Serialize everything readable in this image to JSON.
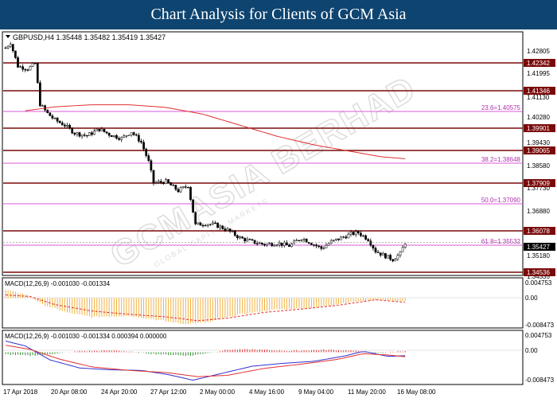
{
  "banner": {
    "title": "Chart Analysis for Clients of GCM Asia"
  },
  "watermark": {
    "brand": "GCMASIA BERHAD",
    "tagline": "GLOBAL CAPITAL MARKETS"
  },
  "colors": {
    "banner": "#0e4470",
    "candle": "#000000",
    "level_line": "#7a0a0a",
    "fib_line": "#d85ad8",
    "ma_line": "#e03030",
    "macd_hist": "#f0b040",
    "macd_signal": "#e03030",
    "osma_pos": "#e03030",
    "osma_neg": "#2a8a2a",
    "line_main": "#3030d0",
    "line_signal": "#e03030",
    "tag_bg": "#7a0a0a",
    "tag_current": "#000000"
  },
  "main_panel": {
    "header": "GBPUSD,H4  1.35448 1.35482 1.35419 1.35427",
    "y_ticks": [
      "1.42805",
      "1.41995",
      "1.41130",
      "1.40280",
      "1.39430",
      "1.38580",
      "1.37730",
      "1.36880",
      "1.35180",
      "1.34335"
    ],
    "levels": [
      "1.42342",
      "1.41346",
      "1.39901",
      "1.39065",
      "1.37909",
      "1.36078",
      "1.34536"
    ],
    "current_price": "1.35427",
    "fib_labels": [
      "23.6=1.40575",
      "38.2=1.38648",
      "50.0=1.37090",
      "61.8=1.35532"
    ]
  },
  "macd_panel": {
    "header": "MACD(12,26,9) -0.001030 -0.001334",
    "y_ticks": [
      "0.004753",
      "0.00",
      "-0.008473"
    ]
  },
  "osma_panel": {
    "header": "MACD(12,26,9) -0.001030 -0.001334 0.000394 0.000000",
    "y_ticks": [
      "0.004753",
      "0.00",
      "-0.008473"
    ]
  },
  "x_axis": {
    "labels": [
      "17 Apr 2018",
      "20 Apr 08:00",
      "24 Apr 20:00",
      "27 Apr 12:00",
      "2 May 00:00",
      "4 May 16:00",
      "9 May 04:00",
      "11 May 20:00",
      "16 May 08:00"
    ]
  },
  "chart_data": {
    "type": "candlestick",
    "symbol": "GBPUSD",
    "timeframe": "H4",
    "ohlc_last": {
      "open": 1.35448,
      "high": 1.35482,
      "low": 1.35419,
      "close": 1.35427
    },
    "ylim": [
      1.342,
      1.434
    ],
    "close_path": [
      {
        "i": 0,
        "v": 1.4285
      },
      {
        "i": 2,
        "v": 1.4305
      },
      {
        "i": 5,
        "v": 1.4215
      },
      {
        "i": 9,
        "v": 1.4205
      },
      {
        "i": 12,
        "v": 1.4225
      },
      {
        "i": 14,
        "v": 1.407
      },
      {
        "i": 17,
        "v": 1.4035
      },
      {
        "i": 20,
        "v": 1.401
      },
      {
        "i": 24,
        "v": 1.399
      },
      {
        "i": 28,
        "v": 1.396
      },
      {
        "i": 33,
        "v": 1.395
      },
      {
        "i": 38,
        "v": 1.3975
      },
      {
        "i": 42,
        "v": 1.3955
      },
      {
        "i": 47,
        "v": 1.394
      },
      {
        "i": 51,
        "v": 1.3965
      },
      {
        "i": 55,
        "v": 1.3925
      },
      {
        "i": 58,
        "v": 1.385
      },
      {
        "i": 60,
        "v": 1.377
      },
      {
        "i": 65,
        "v": 1.3775
      },
      {
        "i": 70,
        "v": 1.374
      },
      {
        "i": 74,
        "v": 1.376
      },
      {
        "i": 77,
        "v": 1.361
      },
      {
        "i": 81,
        "v": 1.3615
      },
      {
        "i": 85,
        "v": 1.361
      },
      {
        "i": 90,
        "v": 1.359
      },
      {
        "i": 95,
        "v": 1.356
      },
      {
        "i": 100,
        "v": 1.3545
      },
      {
        "i": 105,
        "v": 1.3535
      },
      {
        "i": 110,
        "v": 1.354
      },
      {
        "i": 115,
        "v": 1.353
      },
      {
        "i": 120,
        "v": 1.356
      },
      {
        "i": 124,
        "v": 1.354
      },
      {
        "i": 128,
        "v": 1.352
      },
      {
        "i": 132,
        "v": 1.3545
      },
      {
        "i": 136,
        "v": 1.356
      },
      {
        "i": 140,
        "v": 1.3575
      },
      {
        "i": 143,
        "v": 1.358
      },
      {
        "i": 147,
        "v": 1.3555
      },
      {
        "i": 150,
        "v": 1.351
      },
      {
        "i": 153,
        "v": 1.3495
      },
      {
        "i": 157,
        "v": 1.3478
      },
      {
        "i": 160,
        "v": 1.35
      },
      {
        "i": 162,
        "v": 1.3543
      }
    ],
    "moving_average": [
      {
        "i": 8,
        "v": 1.4045
      },
      {
        "i": 20,
        "v": 1.406
      },
      {
        "i": 35,
        "v": 1.4068
      },
      {
        "i": 50,
        "v": 1.4068
      },
      {
        "i": 65,
        "v": 1.4058
      },
      {
        "i": 80,
        "v": 1.4032
      },
      {
        "i": 95,
        "v": 1.399
      },
      {
        "i": 110,
        "v": 1.3948
      },
      {
        "i": 125,
        "v": 1.3915
      },
      {
        "i": 140,
        "v": 1.389
      },
      {
        "i": 152,
        "v": 1.387
      },
      {
        "i": 162,
        "v": 1.3862
      }
    ],
    "macd": {
      "ylim": [
        -0.009,
        0.0058
      ],
      "histogram": [
        {
          "i": 0,
          "v": 0.0025
        },
        {
          "i": 8,
          "v": 0.0012
        },
        {
          "i": 15,
          "v": -0.002
        },
        {
          "i": 25,
          "v": -0.0045
        },
        {
          "i": 35,
          "v": -0.0058
        },
        {
          "i": 50,
          "v": -0.0055
        },
        {
          "i": 62,
          "v": -0.0068
        },
        {
          "i": 72,
          "v": -0.008
        },
        {
          "i": 82,
          "v": -0.0075
        },
        {
          "i": 95,
          "v": -0.005
        },
        {
          "i": 110,
          "v": -0.0035
        },
        {
          "i": 125,
          "v": -0.003
        },
        {
          "i": 140,
          "v": -0.0012
        },
        {
          "i": 150,
          "v": -0.0005
        },
        {
          "i": 162,
          "v": -0.001
        }
      ],
      "signal": [
        {
          "i": 0,
          "v": 0.001
        },
        {
          "i": 10,
          "v": 0.0005
        },
        {
          "i": 20,
          "v": -0.002
        },
        {
          "i": 35,
          "v": -0.004
        },
        {
          "i": 50,
          "v": -0.005
        },
        {
          "i": 65,
          "v": -0.0058
        },
        {
          "i": 78,
          "v": -0.007
        },
        {
          "i": 90,
          "v": -0.0062
        },
        {
          "i": 105,
          "v": -0.0044
        },
        {
          "i": 120,
          "v": -0.0034
        },
        {
          "i": 135,
          "v": -0.0022
        },
        {
          "i": 150,
          "v": -0.0005
        },
        {
          "i": 162,
          "v": -0.0013
        }
      ]
    },
    "osma": {
      "ylim": [
        -0.009,
        0.0058
      ],
      "histogram": [
        {
          "i": 0,
          "v": -0.0006
        },
        {
          "i": 10,
          "v": -0.001
        },
        {
          "i": 20,
          "v": -0.0004
        },
        {
          "i": 30,
          "v": 0.0003
        },
        {
          "i": 45,
          "v": 0.0005
        },
        {
          "i": 60,
          "v": -0.0005
        },
        {
          "i": 75,
          "v": -0.001
        },
        {
          "i": 90,
          "v": 0.0007
        },
        {
          "i": 100,
          "v": 0.0008
        },
        {
          "i": 115,
          "v": 0.0004
        },
        {
          "i": 130,
          "v": 0.0007
        },
        {
          "i": 140,
          "v": 0.0005
        },
        {
          "i": 150,
          "v": -0.0003
        },
        {
          "i": 162,
          "v": 0.0004
        }
      ],
      "main": [
        {
          "i": 0,
          "v": 0.0032
        },
        {
          "i": 8,
          "v": 0.0018
        },
        {
          "i": 18,
          "v": -0.0022
        },
        {
          "i": 30,
          "v": -0.0045
        },
        {
          "i": 42,
          "v": -0.005
        },
        {
          "i": 55,
          "v": -0.0052
        },
        {
          "i": 66,
          "v": -0.0064
        },
        {
          "i": 76,
          "v": -0.008
        },
        {
          "i": 88,
          "v": -0.006
        },
        {
          "i": 100,
          "v": -0.004
        },
        {
          "i": 112,
          "v": -0.0032
        },
        {
          "i": 125,
          "v": -0.0026
        },
        {
          "i": 138,
          "v": -0.001
        },
        {
          "i": 145,
          "v": 0.0003
        },
        {
          "i": 155,
          "v": -0.0012
        },
        {
          "i": 162,
          "v": -0.001
        }
      ],
      "signal": [
        {
          "i": 0,
          "v": 0.002
        },
        {
          "i": 10,
          "v": 0.0008
        },
        {
          "i": 22,
          "v": -0.002
        },
        {
          "i": 35,
          "v": -0.0042
        },
        {
          "i": 50,
          "v": -0.0052
        },
        {
          "i": 65,
          "v": -0.0058
        },
        {
          "i": 78,
          "v": -0.007
        },
        {
          "i": 90,
          "v": -0.0066
        },
        {
          "i": 105,
          "v": -0.0046
        },
        {
          "i": 120,
          "v": -0.0034
        },
        {
          "i": 135,
          "v": -0.002
        },
        {
          "i": 145,
          "v": -0.0004
        },
        {
          "i": 155,
          "v": -0.0008
        },
        {
          "i": 162,
          "v": -0.0013
        }
      ]
    }
  }
}
